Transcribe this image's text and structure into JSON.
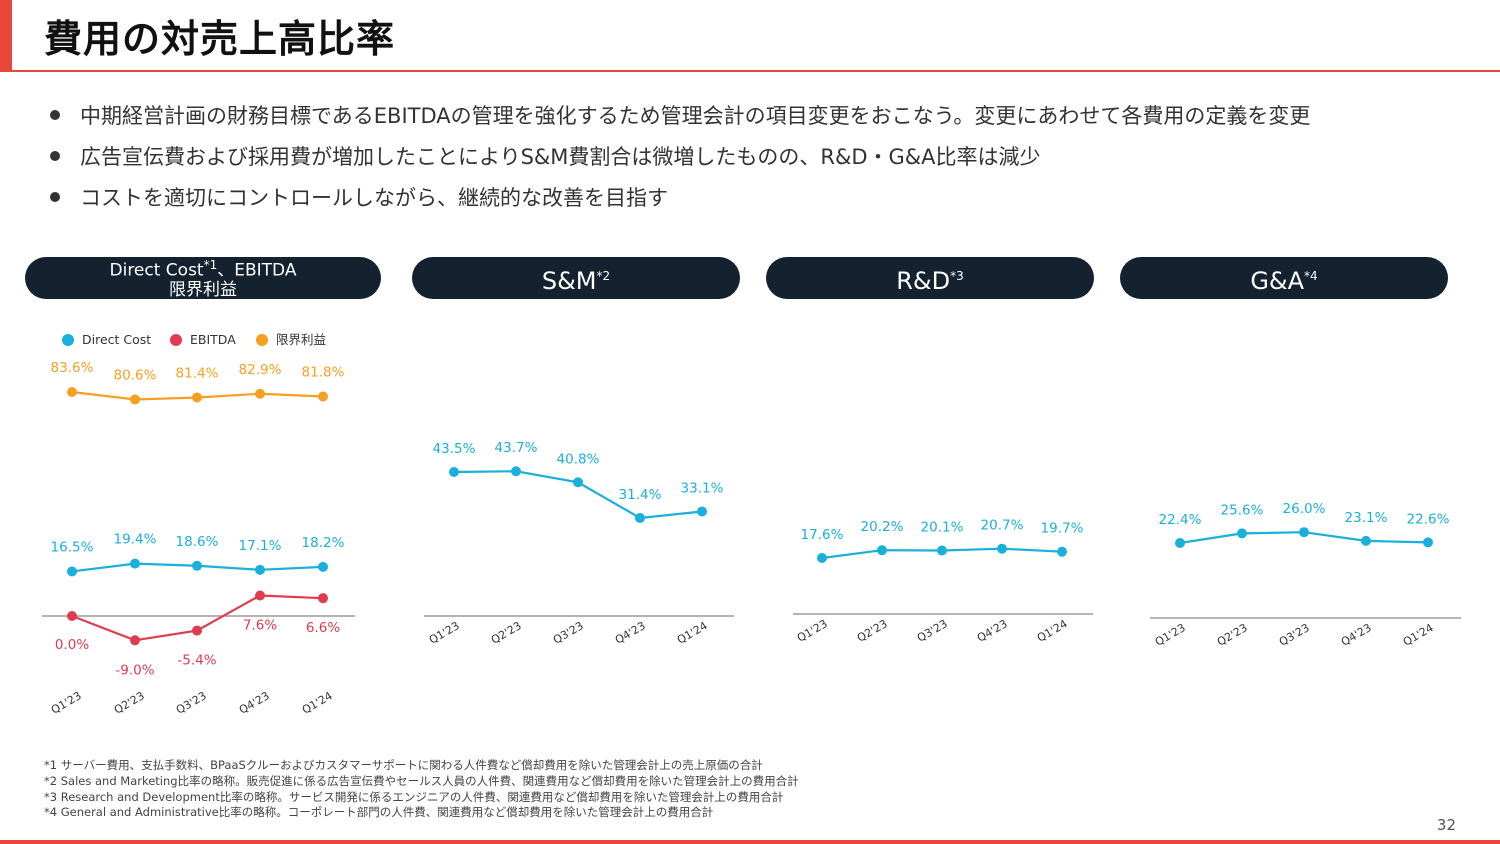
{
  "title": "費用の対売上高比率",
  "bullets": [
    "中期経営計画の財務目標であるEBITDAの管理を強化するため管理会計の項目変更をおこなう。変更にあわせて各費用の定義を変更",
    "広告宣伝費および採用費が増加したことによりS&M費割合は微増したものの、R&D・G&A比率は減少",
    "コストを適切にコントロールしながら、継続的な改善を目指す"
  ],
  "panels": [
    {
      "line1": "Direct Cost",
      "sup1": "*1",
      "line1_suffix": "、EBITDA",
      "line2": "限界利益"
    },
    {
      "label": "S&M",
      "sup": "*2"
    },
    {
      "label": "R&D",
      "sup": "*3"
    },
    {
      "label": "G&A",
      "sup": "*4"
    }
  ],
  "colors": {
    "direct_cost": "#1ab0dc",
    "ebitda": "#e03c4f",
    "marginal_profit": "#f5a020",
    "pill": "#14212f",
    "accent": "#e8463a"
  },
  "chart_data": [
    {
      "type": "line",
      "categories": [
        "Q1'23",
        "Q2'23",
        "Q3'23",
        "Q4'23",
        "Q1'24"
      ],
      "legend": {
        "placement": "top-left",
        "entries": [
          "Direct Cost",
          "EBITDA",
          "限界利益"
        ]
      },
      "series": [
        {
          "name": "限界利益",
          "values": [
            83.6,
            80.6,
            81.4,
            82.9,
            81.8
          ],
          "labels": [
            "83.6%",
            "80.6%",
            "81.4%",
            "82.9%",
            "81.8%"
          ]
        },
        {
          "name": "Direct Cost",
          "values": [
            16.5,
            19.4,
            18.6,
            17.1,
            18.2
          ],
          "labels": [
            "16.5%",
            "19.4%",
            "18.6%",
            "17.1%",
            "18.2%"
          ]
        },
        {
          "name": "EBITDA",
          "values": [
            0.0,
            -9.0,
            -5.4,
            7.6,
            6.6
          ],
          "labels": [
            "0.0%",
            "-9.0%",
            "-5.4%",
            "7.6%",
            "6.6%"
          ]
        }
      ]
    },
    {
      "type": "line",
      "categories": [
        "Q1'23",
        "Q2'23",
        "Q3'23",
        "Q4'23",
        "Q1'24"
      ],
      "series": [
        {
          "values": [
            43.5,
            43.7,
            40.8,
            31.4,
            33.1
          ],
          "labels": [
            "43.5%",
            "43.7%",
            "40.8%",
            "31.4%",
            "33.1%"
          ]
        }
      ]
    },
    {
      "type": "line",
      "categories": [
        "Q1'23",
        "Q2'23",
        "Q3'23",
        "Q4'23",
        "Q1'24"
      ],
      "series": [
        {
          "values": [
            17.6,
            20.2,
            20.1,
            20.7,
            19.7
          ],
          "labels": [
            "17.6%",
            "20.2%",
            "20.1%",
            "20.7%",
            "19.7%"
          ]
        }
      ]
    },
    {
      "type": "line",
      "categories": [
        "Q1'23",
        "Q2'23",
        "Q3'23",
        "Q4'23",
        "Q1'24"
      ],
      "series": [
        {
          "values": [
            22.4,
            25.6,
            26.0,
            23.1,
            22.6
          ],
          "labels": [
            "22.4%",
            "25.6%",
            "26.0%",
            "23.1%",
            "22.6%"
          ]
        }
      ]
    }
  ],
  "footnotes": [
    "*1 サーバー費用、支払手数料、BPaaSクルーおよびカスタマーサポートに関わる人件費など償却費用を除いた管理会計上の売上原価の合計",
    "*2 Sales and Marketing比率の略称。販売促進に係る広告宣伝費やセールス人員の人件費、関連費用など償却費用を除いた管理会計上の費用合計",
    "*3 Research and Development比率の略称。サービス開発に係るエンジニアの人件費、関連費用など償却費用を除いた管理会計上の費用合計",
    "*4 General and Administrative比率の略称。コーポレート部門の人件費、関連費用など償却費用を除いた管理会計上の費用合計"
  ],
  "page_number": "32"
}
